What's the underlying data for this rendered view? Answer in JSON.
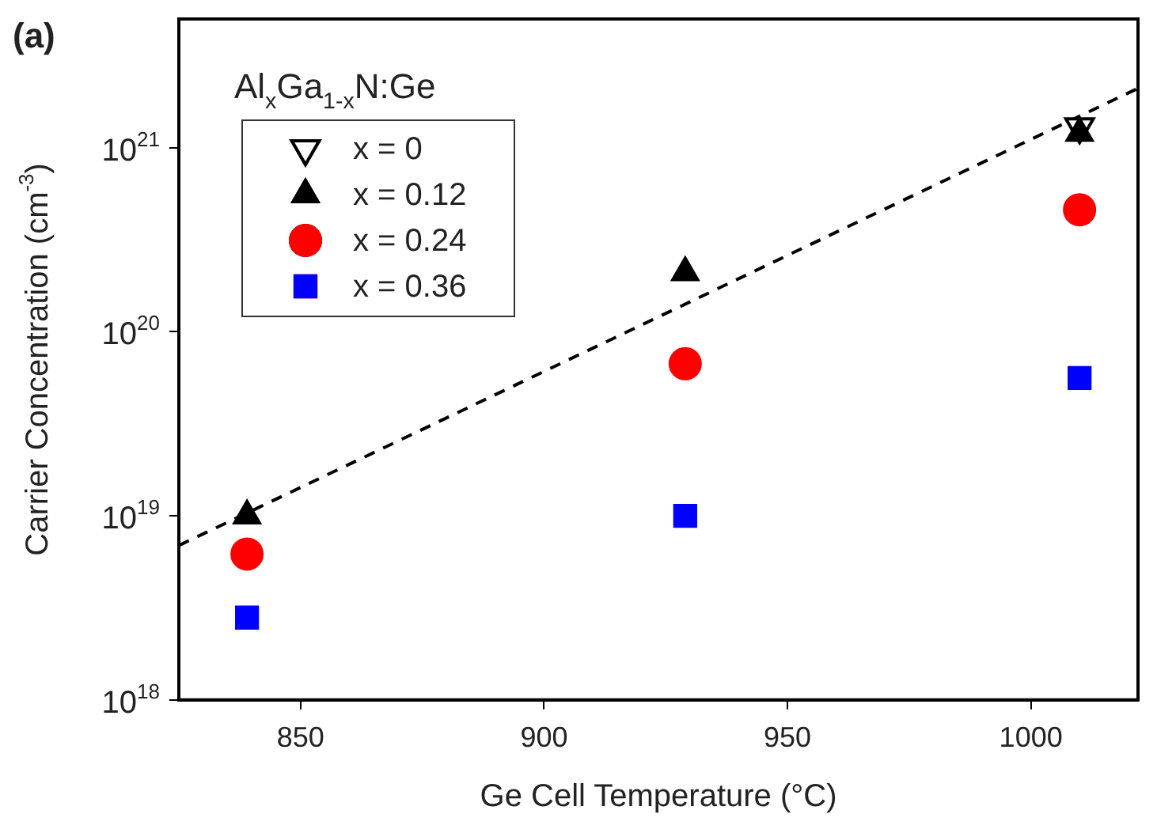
{
  "chart_data": {
    "type": "scatter",
    "xlabel": "Ge Cell Temperature (°C)",
    "ylabel": "Carrier Concentration (cm$^{-3}$)",
    "legend_title": "Al$_{x}$Ga$_{1-x}$N:Ge",
    "annotations": [
      "(a)"
    ],
    "xlim": [
      825,
      1022
    ],
    "xticks": [
      850,
      900,
      950,
      1000
    ],
    "ylim": [
      1e+18,
      5e+21
    ],
    "log": "y",
    "yticks": [
      {
        "value": 1e+18,
        "label": "10$^{18}$"
      },
      {
        "value": 1e+19,
        "label": "10$^{19}$"
      },
      {
        "value": 1e+20,
        "label": "10$^{20}$"
      },
      {
        "value": 1e+21,
        "label": "10$^{21}$"
      }
    ],
    "grid": false,
    "legend": "top left",
    "series": [
      {
        "name": "x = 0",
        "color": "#000000",
        "marker": "triangle",
        "x": [
          1010
        ],
        "values": [
          1.3e+21
        ]
      },
      {
        "name": "x = 0.12",
        "color": "#000000",
        "marker": "triangle",
        "x": [
          839,
          929,
          1010
        ],
        "values": [
          1e+19,
          2.1e+20,
          1.2e+21
        ]
      },
      {
        "name": "x = 0.24",
        "color": "#ff0000",
        "marker": "circle",
        "x": [
          839,
          929,
          1010
        ],
        "values": [
          6.2e+18,
          6.7e+19,
          4.6e+20
        ]
      },
      {
        "name": "x = 0.36",
        "color": "#0000ff",
        "marker": "square",
        "x": [
          839,
          929,
          1010
        ],
        "values": [
          2.8e+18,
          1e+19,
          5.6e+19
        ]
      },
      {
        "type": "line",
        "color": "#000000",
        "marker": "none",
        "line_style": "dashed",
        "x": [
          825,
          1022
        ],
        "values": [
          6.9e+18,
          2.1e+21
        ]
      }
    ]
  }
}
